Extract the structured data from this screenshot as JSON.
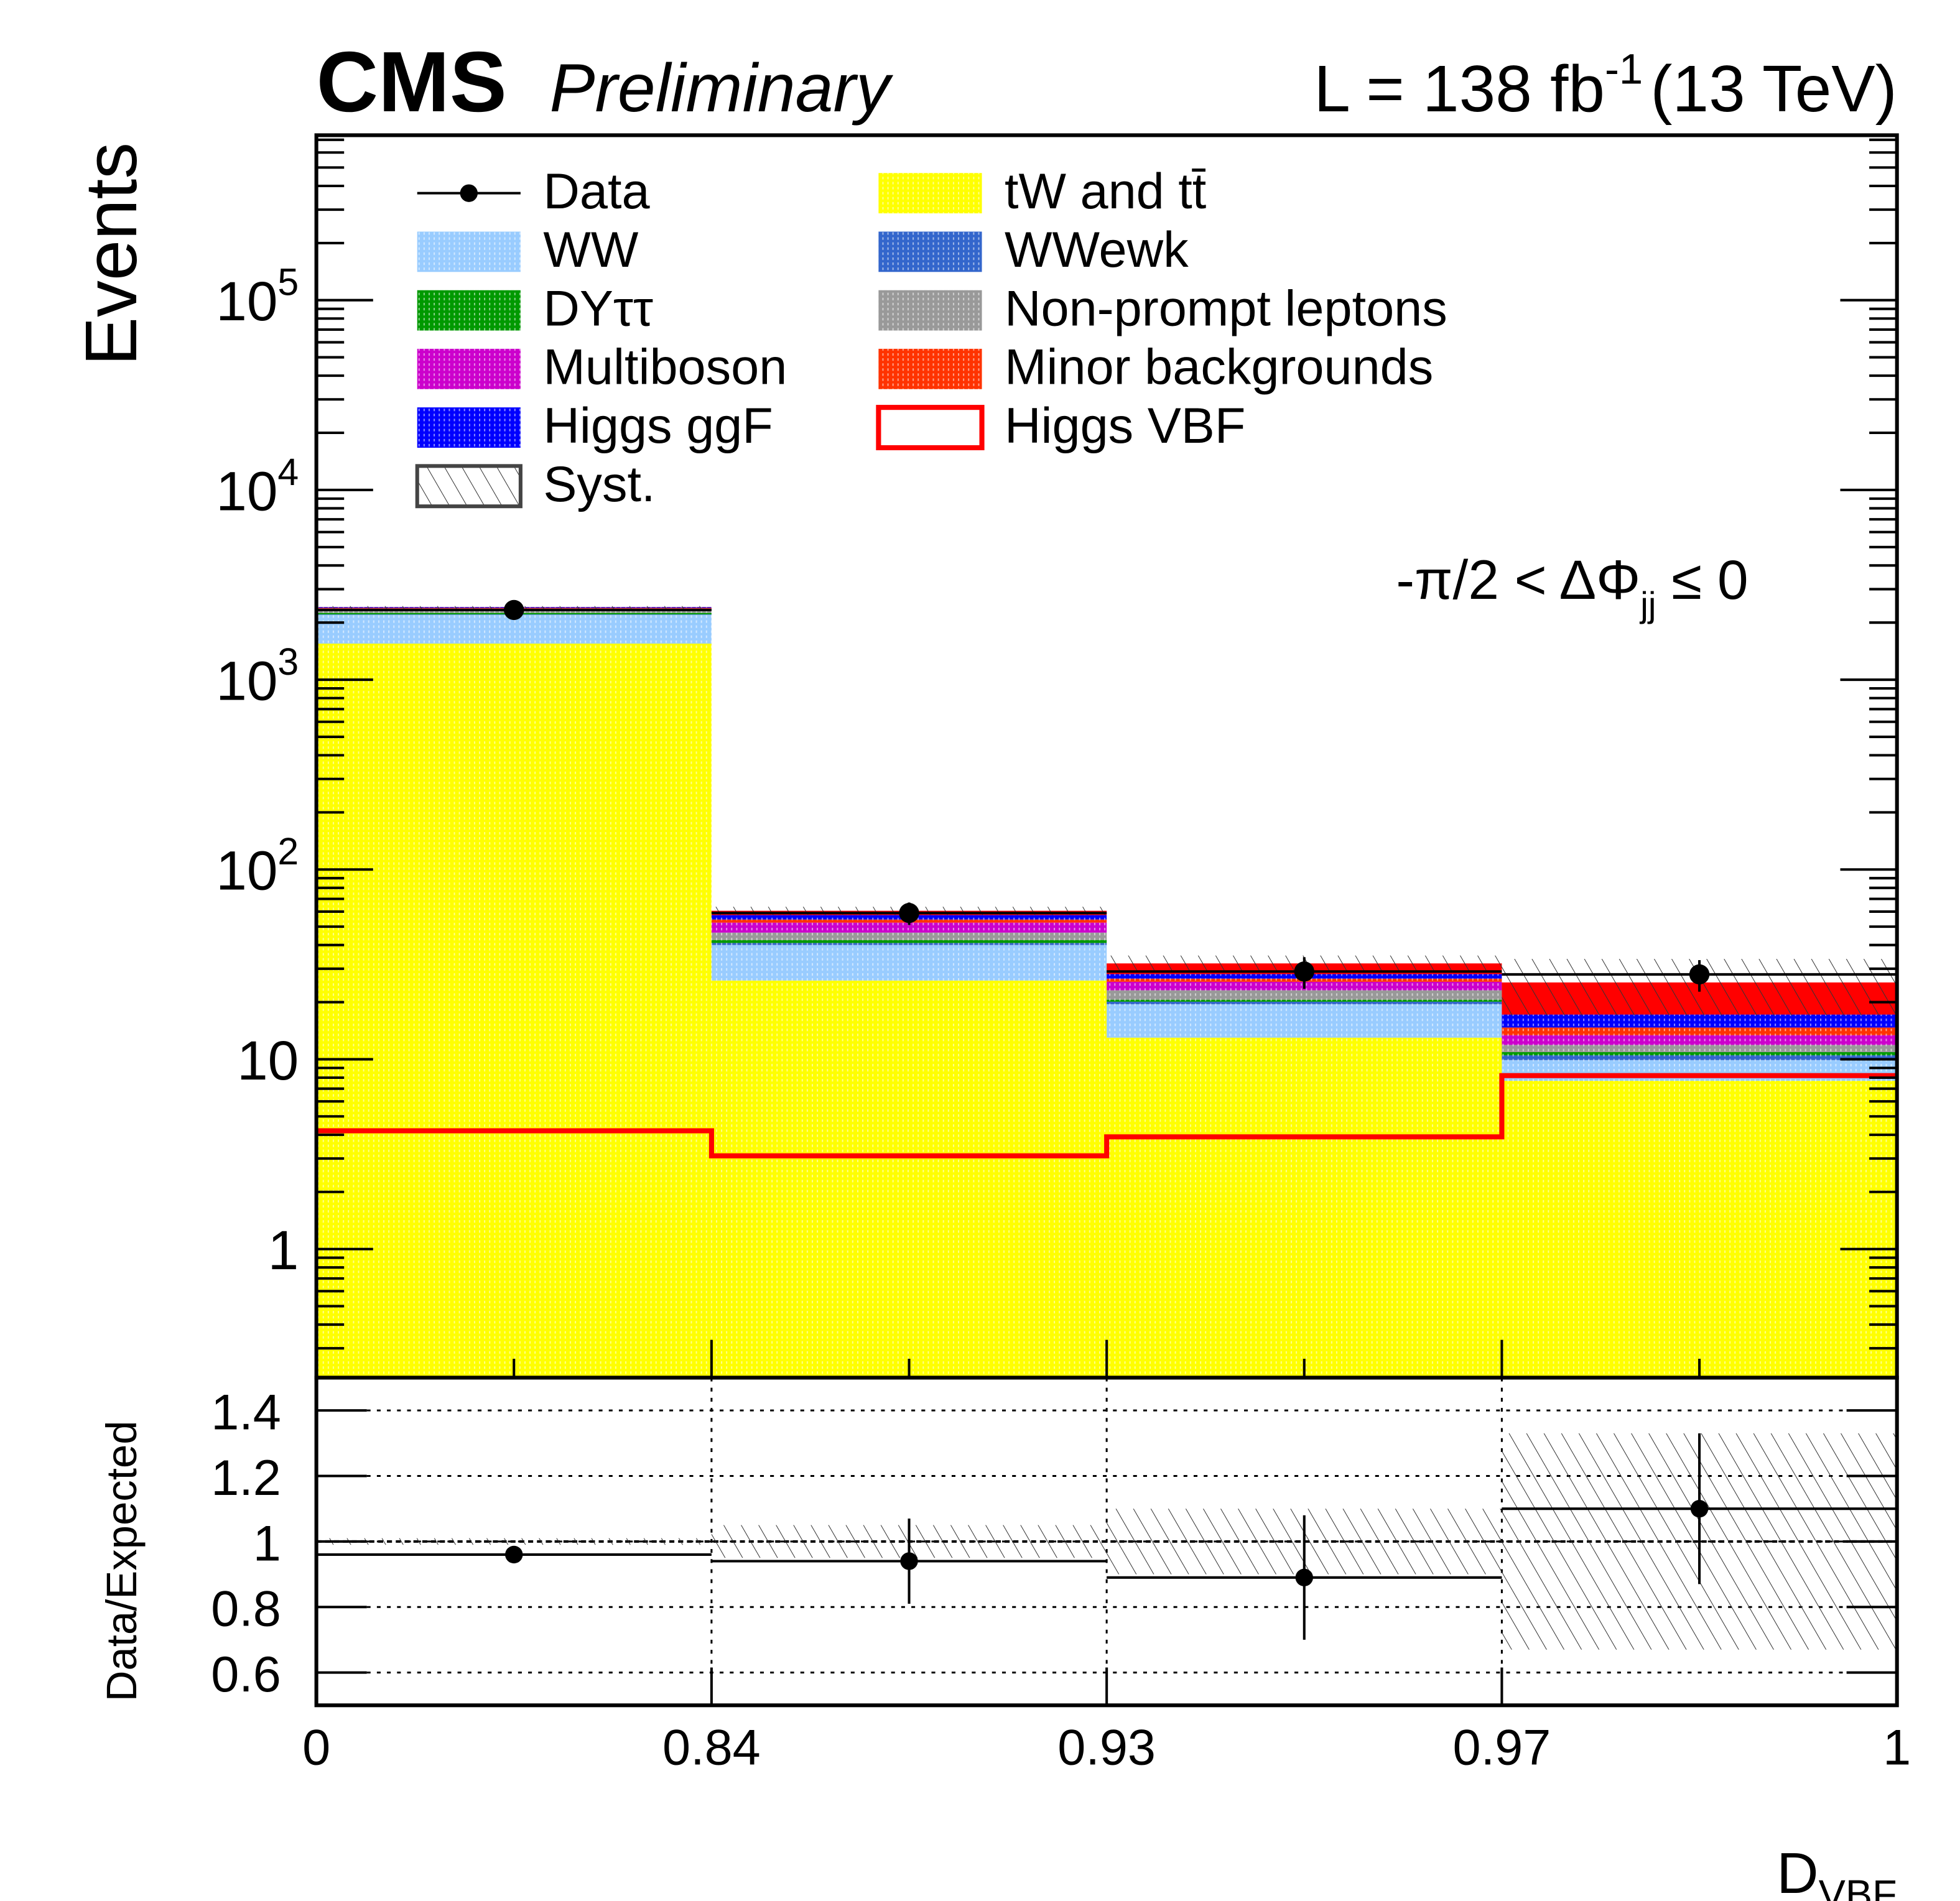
{
  "header": {
    "experiment": "CMS",
    "status": "Preliminary",
    "lumi_prefix": "L = 138 fb",
    "lumi_exp": "-1",
    "energy": "(13 TeV)"
  },
  "annotation": {
    "text": "-π/2 < ΔΦ",
    "sub": "jj",
    "suffix": " ≤ 0"
  },
  "chart_data": {
    "type": "bar",
    "stacked": true,
    "categories": [
      "0–0.84",
      "0.84–0.93",
      "0.93–0.97",
      "0.97–1"
    ],
    "bin_edges": [
      "0",
      "0.84",
      "0.93",
      "0.97",
      "1"
    ],
    "xlabel": "D",
    "xlabel_sub": "VBF",
    "ylabel": "Events",
    "yscale": "log",
    "ylim": [
      0.21,
      740000
    ],
    "y_tick_labels": [
      "1",
      "10",
      "10^2",
      "10^3",
      "10^4",
      "10^5"
    ],
    "y_tick_values": [
      1,
      10,
      100,
      1000,
      10000,
      100000
    ],
    "legend_position": "top-left",
    "series": [
      {
        "name": "tW and tt̄",
        "color": "#ffff00",
        "values": [
          1550,
          26,
          13,
          7.7
        ]
      },
      {
        "name": "WW",
        "color": "#99ccff",
        "values": [
          650,
          14,
          6.5,
          2.2
        ]
      },
      {
        "name": "WWewk",
        "color": "#3366cc",
        "values": [
          10,
          1,
          0.6,
          0.6
        ]
      },
      {
        "name": "DYττ",
        "color": "#009900",
        "values": [
          40,
          1.5,
          0.5,
          0.4
        ]
      },
      {
        "name": "Non-prompt leptons",
        "color": "#999999",
        "values": [
          60,
          4,
          2.5,
          1.0
        ]
      },
      {
        "name": "Multiboson",
        "color": "#cc00cc",
        "values": [
          60,
          6,
          2.5,
          1.5
        ]
      },
      {
        "name": "Minor backgrounds",
        "color": "#ff3300",
        "values": [
          20,
          2,
          1,
          1.3
        ]
      },
      {
        "name": "Higgs ggF",
        "color": "#0000ff",
        "values": [
          25,
          3,
          1.5,
          2.5
        ]
      },
      {
        "name": "Higgs VBF",
        "color": "#ff0000",
        "values": [
          4.2,
          3.1,
          3.9,
          8.2
        ],
        "style": "line"
      }
    ],
    "data": {
      "name": "Data",
      "values": [
        2330,
        59,
        29,
        28
      ],
      "errors": [
        48,
        8,
        5.5,
        5.3
      ]
    },
    "syst": {
      "name": "Syst.",
      "relative": [
        0.01,
        0.05,
        0.1,
        0.33
      ]
    },
    "ratio": {
      "ylabel": "Data/Expected",
      "ylim": [
        0.5,
        1.5
      ],
      "y_tick_labels": [
        "0.6",
        "0.8",
        "1",
        "1.2",
        "1.4"
      ],
      "y_tick_values": [
        0.6,
        0.8,
        1.0,
        1.2,
        1.4
      ],
      "values": [
        0.96,
        0.94,
        0.89,
        1.1
      ],
      "errors": [
        0.02,
        0.13,
        0.19,
        0.23
      ],
      "grid": true
    },
    "legend": [
      {
        "label": "Data",
        "kind": "marker"
      },
      {
        "label": "WW",
        "color": "#99ccff"
      },
      {
        "label": "DYττ",
        "color": "#009900"
      },
      {
        "label": "Multiboson",
        "color": "#cc00cc"
      },
      {
        "label": "Higgs ggF",
        "color": "#0000ff"
      },
      {
        "label": "Syst.",
        "kind": "hatch"
      },
      {
        "label": "tW and tt̄",
        "color": "#ffff00"
      },
      {
        "label": "WWewk",
        "color": "#3366cc"
      },
      {
        "label": "Non-prompt leptons",
        "color": "#999999"
      },
      {
        "label": "Minor backgrounds",
        "color": "#ff3300"
      },
      {
        "label": "Higgs VBF",
        "kind": "line",
        "color": "#ff0000"
      }
    ]
  }
}
